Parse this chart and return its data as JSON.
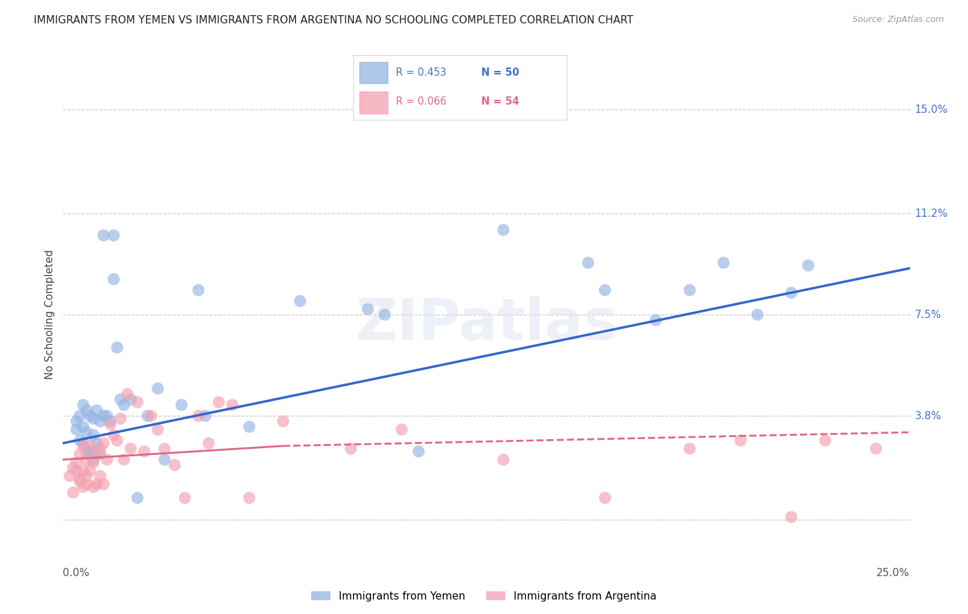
{
  "title": "IMMIGRANTS FROM YEMEN VS IMMIGRANTS FROM ARGENTINA NO SCHOOLING COMPLETED CORRELATION CHART",
  "source": "Source: ZipAtlas.com",
  "ylabel": "No Schooling Completed",
  "ytick_vals": [
    0.0,
    0.038,
    0.075,
    0.112,
    0.15
  ],
  "ytick_labels": [
    "",
    "3.8%",
    "7.5%",
    "11.2%",
    "15.0%"
  ],
  "xlim": [
    0.0,
    0.25
  ],
  "ylim": [
    -0.012,
    0.162
  ],
  "legend1_r": "R = 0.453",
  "legend1_n": "N = 50",
  "legend2_r": "R = 0.066",
  "legend2_n": "N = 54",
  "legend_label1": "Immigrants from Yemen",
  "legend_label2": "Immigrants from Argentina",
  "color_yemen": "#92b4e3",
  "color_argentina": "#f4a0b0",
  "color_line_yemen": "#3366cc",
  "color_line_argentina": "#e06880",
  "yemen_x": [
    0.004,
    0.004,
    0.005,
    0.005,
    0.006,
    0.006,
    0.006,
    0.007,
    0.007,
    0.007,
    0.008,
    0.008,
    0.009,
    0.009,
    0.009,
    0.01,
    0.01,
    0.011,
    0.011,
    0.012,
    0.012,
    0.013,
    0.014,
    0.015,
    0.015,
    0.016,
    0.017,
    0.018,
    0.02,
    0.022,
    0.025,
    0.028,
    0.03,
    0.035,
    0.04,
    0.042,
    0.055,
    0.07,
    0.09,
    0.095,
    0.105,
    0.13,
    0.155,
    0.16,
    0.175,
    0.185,
    0.195,
    0.205,
    0.215,
    0.22
  ],
  "yemen_y": [
    0.036,
    0.033,
    0.038,
    0.029,
    0.042,
    0.034,
    0.028,
    0.04,
    0.032,
    0.025,
    0.038,
    0.025,
    0.037,
    0.031,
    0.022,
    0.04,
    0.028,
    0.036,
    0.024,
    0.104,
    0.038,
    0.038,
    0.036,
    0.104,
    0.088,
    0.063,
    0.044,
    0.042,
    0.044,
    0.008,
    0.038,
    0.048,
    0.022,
    0.042,
    0.084,
    0.038,
    0.034,
    0.08,
    0.077,
    0.075,
    0.025,
    0.106,
    0.094,
    0.084,
    0.073,
    0.084,
    0.094,
    0.075,
    0.083,
    0.093
  ],
  "argentina_x": [
    0.002,
    0.003,
    0.003,
    0.004,
    0.004,
    0.005,
    0.005,
    0.005,
    0.006,
    0.006,
    0.006,
    0.007,
    0.007,
    0.007,
    0.008,
    0.008,
    0.009,
    0.009,
    0.01,
    0.01,
    0.011,
    0.011,
    0.012,
    0.012,
    0.013,
    0.014,
    0.015,
    0.016,
    0.017,
    0.018,
    0.019,
    0.02,
    0.022,
    0.024,
    0.026,
    0.028,
    0.03,
    0.033,
    0.036,
    0.04,
    0.043,
    0.046,
    0.05,
    0.055,
    0.065,
    0.085,
    0.1,
    0.13,
    0.16,
    0.185,
    0.2,
    0.215,
    0.225,
    0.24
  ],
  "argentina_y": [
    0.016,
    0.01,
    0.019,
    0.018,
    0.021,
    0.015,
    0.024,
    0.014,
    0.012,
    0.027,
    0.018,
    0.013,
    0.022,
    0.016,
    0.027,
    0.018,
    0.012,
    0.021,
    0.013,
    0.024,
    0.016,
    0.026,
    0.013,
    0.028,
    0.022,
    0.035,
    0.031,
    0.029,
    0.037,
    0.022,
    0.046,
    0.026,
    0.043,
    0.025,
    0.038,
    0.033,
    0.026,
    0.02,
    0.008,
    0.038,
    0.028,
    0.043,
    0.042,
    0.008,
    0.036,
    0.026,
    0.033,
    0.022,
    0.008,
    0.026,
    0.029,
    0.001,
    0.029,
    0.026
  ],
  "background_color": "#ffffff",
  "watermark_text": "ZIPatlas",
  "title_fontsize": 11,
  "marker_size": 160,
  "marker_alpha": 0.65,
  "line_yemen_x0": 0.0,
  "line_yemen_y0": 0.028,
  "line_yemen_x1": 0.25,
  "line_yemen_y1": 0.092,
  "line_argentina_solid_x0": 0.0,
  "line_argentina_solid_y0": 0.022,
  "line_argentina_solid_x1": 0.065,
  "line_argentina_solid_y1": 0.027,
  "line_argentina_dash_x0": 0.065,
  "line_argentina_dash_y0": 0.027,
  "line_argentina_dash_x1": 0.25,
  "line_argentina_dash_y1": 0.032
}
